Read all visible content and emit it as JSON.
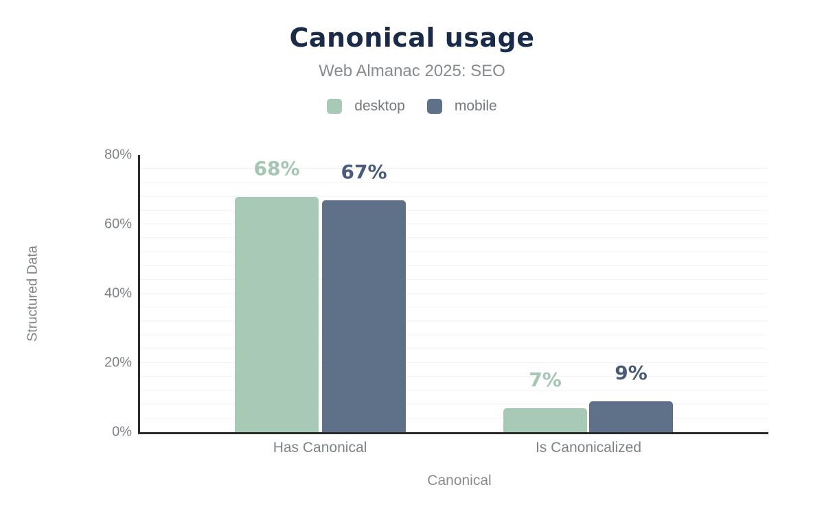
{
  "header": {
    "title": "Canonical usage",
    "subtitle": "Web Almanac 2025: SEO"
  },
  "legend": {
    "position": "top",
    "items": [
      {
        "label": "desktop",
        "color": "#a7c9b6"
      },
      {
        "label": "mobile",
        "color": "#5f7189"
      }
    ]
  },
  "chart_data": {
    "type": "bar",
    "title": "Canonical usage",
    "subtitle": "Web Almanac 2025: SEO",
    "categories": [
      "Has Canonical",
      "Is Canonicalized"
    ],
    "series": [
      {
        "name": "desktop",
        "color": "#a7c9b6",
        "label_color": "#a3c7b2",
        "values": [
          68,
          7
        ],
        "value_labels": [
          "68%",
          "7%"
        ]
      },
      {
        "name": "mobile",
        "color": "#5f7189",
        "label_color": "#495a7a",
        "values": [
          67,
          9
        ],
        "value_labels": [
          "67%",
          "9%"
        ]
      }
    ],
    "xlabel": "Canonical",
    "ylabel": "Structured Data",
    "ylim": [
      0,
      80
    ],
    "yticks": [
      "0%",
      "20%",
      "40%",
      "60%",
      "80%"
    ],
    "grid": {
      "horizontal_minor_step_pct": 4,
      "vertical": false
    },
    "legend_position": "top"
  },
  "colors": {
    "title_text": "#1a2b49",
    "subtitle_text": "#878b8f",
    "axis_text": "#7c8286",
    "axis_line": "#2b2b2b",
    "gridline": "#f2f2f2",
    "background": "#ffffff"
  }
}
